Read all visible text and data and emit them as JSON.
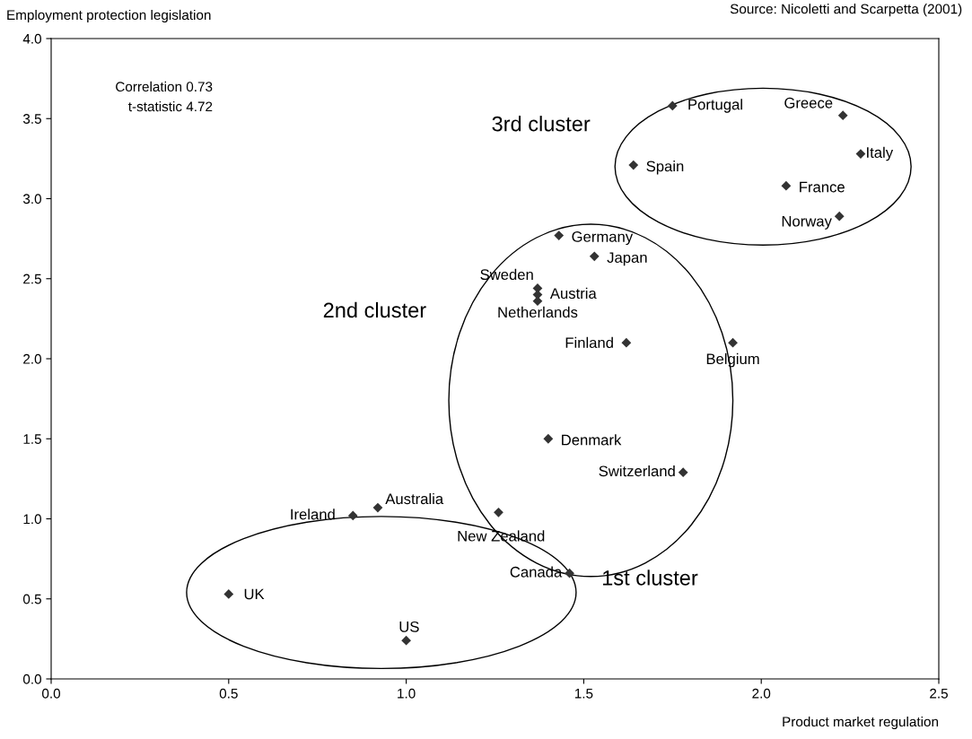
{
  "chart_data": {
    "type": "scatter",
    "xlabel": "Product market regulation",
    "ylabel": "Employment protection legislation",
    "x": [
      1.75,
      2.23,
      2.28,
      1.64,
      2.07,
      2.22,
      1.43,
      1.53,
      1.37,
      1.37,
      1.37,
      1.62,
      1.92,
      1.4,
      1.78,
      0.92,
      0.85,
      1.26,
      1.46,
      0.5,
      1.0
    ],
    "series": [
      {
        "color": "#333333",
        "values": [
          3.58,
          3.52,
          3.28,
          3.21,
          3.08,
          2.89,
          2.77,
          2.64,
          2.44,
          2.4,
          2.36,
          2.1,
          2.1,
          1.5,
          1.29,
          1.07,
          1.02,
          1.04,
          0.66,
          0.53,
          0.24
        ]
      }
    ],
    "marker": "diamond",
    "grid": false,
    "legend": false,
    "xlim": [
      0,
      2.5
    ],
    "ylim": [
      0,
      4
    ],
    "xticks": [
      {
        "value": 0,
        "label": "0.0"
      },
      {
        "value": 0.5,
        "label": "0.5"
      },
      {
        "value": 1,
        "label": "1.0"
      },
      {
        "value": 1.5,
        "label": "1.5"
      },
      {
        "value": 2,
        "label": "2.0"
      },
      {
        "value": 2.5,
        "label": "2.5"
      }
    ],
    "yticks": [
      {
        "value": 0,
        "label": "0.0"
      },
      {
        "value": 0.5,
        "label": "0.5"
      },
      {
        "value": 1,
        "label": "1.0"
      },
      {
        "value": 1.5,
        "label": "1.5"
      },
      {
        "value": 2,
        "label": "2.0"
      },
      {
        "value": 2.5,
        "label": "2.5"
      },
      {
        "value": 3,
        "label": "3.0"
      },
      {
        "value": 3.5,
        "label": "3.5"
      },
      {
        "value": 4,
        "label": "4.0"
      }
    ],
    "annotations": [
      {
        "text": "Portugal",
        "x": 1.75,
        "y": 3.58
      },
      {
        "text": "Greece",
        "x": 2.23,
        "y": 3.52
      },
      {
        "text": "Italy",
        "x": 2.28,
        "y": 3.28
      },
      {
        "text": "Spain",
        "x": 1.64,
        "y": 3.21
      },
      {
        "text": "France",
        "x": 2.07,
        "y": 3.08
      },
      {
        "text": "Norway",
        "x": 2.22,
        "y": 2.89
      },
      {
        "text": "Germany",
        "x": 1.43,
        "y": 2.77
      },
      {
        "text": "Japan",
        "x": 1.53,
        "y": 2.64
      },
      {
        "text": "Sweden",
        "x": 1.37,
        "y": 2.44
      },
      {
        "text": "Austria",
        "x": 1.37,
        "y": 2.4
      },
      {
        "text": "Netherlands",
        "x": 1.37,
        "y": 2.36
      },
      {
        "text": "Finland",
        "x": 1.62,
        "y": 2.1
      },
      {
        "text": "Belgium",
        "x": 1.92,
        "y": 2.1
      },
      {
        "text": "Denmark",
        "x": 1.4,
        "y": 1.5
      },
      {
        "text": "Switzerland",
        "x": 1.78,
        "y": 1.29
      },
      {
        "text": "Australia",
        "x": 0.92,
        "y": 1.07
      },
      {
        "text": "Ireland",
        "x": 0.85,
        "y": 1.02
      },
      {
        "text": "New Zealand",
        "x": 1.26,
        "y": 1.04
      },
      {
        "text": "Canada",
        "x": 1.46,
        "y": 0.66
      },
      {
        "text": "UK",
        "x": 0.5,
        "y": 0.53
      },
      {
        "text": "US",
        "x": 1.0,
        "y": 0.24
      },
      "Correlation 0.73",
      "t-statistic 4.72",
      "3rd cluster",
      "2nd cluster",
      "1st cluster",
      "Source: Nicoletti and Scarpetta (2001)"
    ]
  }
}
